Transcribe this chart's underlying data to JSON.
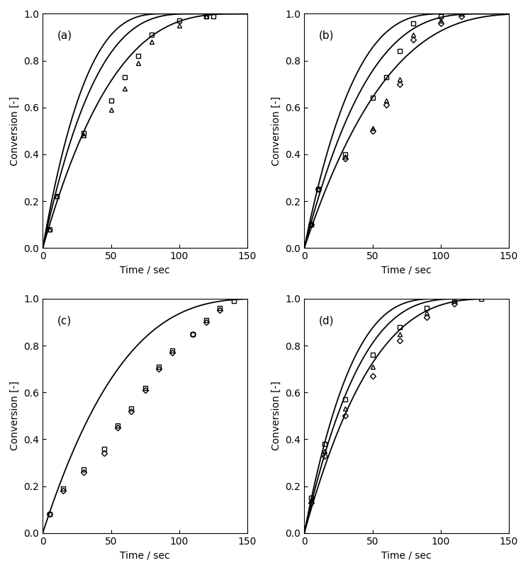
{
  "panels": [
    "(a)",
    "(b)",
    "(c)",
    "(d)"
  ],
  "xlabel": "Time / sec",
  "ylabel": "Conversion [-]",
  "xlim": [
    0,
    150
  ],
  "ylim": [
    0,
    1.0
  ],
  "xticks": [
    0,
    50,
    100,
    150
  ],
  "yticks": [
    0.0,
    0.2,
    0.4,
    0.6,
    0.8,
    1.0
  ],
  "panel_a": {
    "k_vals": [
      0.011,
      0.009,
      0.0068
    ],
    "data_square": {
      "t": [
        5,
        10,
        30,
        50,
        60,
        70,
        80,
        100,
        120,
        125
      ],
      "x": [
        0.08,
        0.22,
        0.49,
        0.63,
        0.73,
        0.82,
        0.91,
        0.97,
        0.99,
        0.99
      ]
    },
    "data_triangle": {
      "t": [
        5,
        10,
        30,
        50,
        60,
        70,
        80,
        100,
        120
      ],
      "x": [
        0.08,
        0.22,
        0.48,
        0.59,
        0.68,
        0.79,
        0.88,
        0.95,
        0.99
      ]
    }
  },
  "panel_b": {
    "k_vals": [
      0.0095,
      0.0075,
      0.0058
    ],
    "data_square": {
      "t": [
        5,
        10,
        30,
        50,
        60,
        70,
        80,
        100,
        115
      ],
      "x": [
        0.1,
        0.25,
        0.4,
        0.64,
        0.73,
        0.84,
        0.96,
        0.99,
        1.0
      ]
    },
    "data_triangle": {
      "t": [
        5,
        10,
        30,
        50,
        60,
        70,
        80,
        100,
        115
      ],
      "x": [
        0.1,
        0.25,
        0.39,
        0.51,
        0.63,
        0.72,
        0.91,
        0.97,
        1.0
      ]
    },
    "data_diamond": {
      "t": [
        5,
        10,
        30,
        50,
        60,
        70,
        80,
        100,
        115
      ],
      "x": [
        0.1,
        0.25,
        0.38,
        0.5,
        0.61,
        0.7,
        0.89,
        0.96,
        0.99
      ]
    }
  },
  "panel_c": {
    "k_vals": [
      0.006
    ],
    "data_square": {
      "t": [
        5,
        15,
        30,
        45,
        55,
        65,
        75,
        85,
        95,
        110,
        120,
        130,
        140
      ],
      "x": [
        0.08,
        0.19,
        0.27,
        0.36,
        0.46,
        0.53,
        0.62,
        0.71,
        0.78,
        0.85,
        0.91,
        0.96,
        0.99
      ]
    },
    "data_diamond": {
      "t": [
        5,
        15,
        30,
        45,
        55,
        65,
        75,
        85,
        95,
        110,
        120,
        130
      ],
      "x": [
        0.08,
        0.18,
        0.26,
        0.34,
        0.45,
        0.52,
        0.61,
        0.7,
        0.77,
        0.85,
        0.9,
        0.95
      ]
    }
  },
  "panel_d": {
    "k_vals": [
      0.01,
      0.0085,
      0.007
    ],
    "data_square": {
      "t": [
        5,
        15,
        30,
        50,
        70,
        90,
        110,
        130
      ],
      "x": [
        0.15,
        0.38,
        0.57,
        0.76,
        0.88,
        0.96,
        0.99,
        1.0
      ]
    },
    "data_triangle": {
      "t": [
        5,
        15,
        30,
        50,
        70,
        90,
        110
      ],
      "x": [
        0.14,
        0.35,
        0.53,
        0.71,
        0.85,
        0.94,
        0.99
      ]
    },
    "data_diamond": {
      "t": [
        5,
        15,
        30,
        50,
        70,
        90,
        110
      ],
      "x": [
        0.13,
        0.33,
        0.5,
        0.67,
        0.82,
        0.92,
        0.98
      ]
    }
  },
  "line_color": "#000000",
  "marker_color": "#000000",
  "marker_size": 4.5,
  "line_width": 1.3
}
